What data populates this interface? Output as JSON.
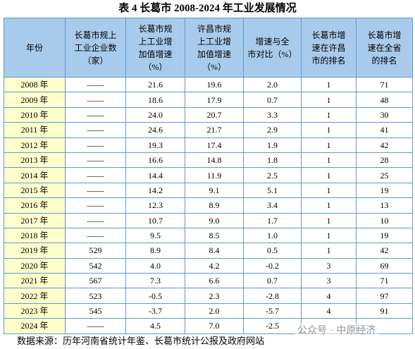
{
  "title": "表 4 长葛市 2008-2024 年工业发展情况",
  "table": {
    "header": [
      [
        "年份"
      ],
      [
        "长葛市规上",
        "工业企业数",
        "（家）"
      ],
      [
        "长葛市规",
        "上工业增",
        "加值增速",
        "（%）"
      ],
      [
        "许昌市规",
        "上工业增",
        "加值增速",
        "（%）"
      ],
      [
        "增速与全",
        "市对比（%）"
      ],
      [
        "长葛市增",
        "速在许昌",
        "市的排名"
      ],
      [
        "长葛市增",
        "速在全省",
        "的排名"
      ]
    ],
    "rows": [
      [
        "2008 年",
        "——",
        "21.6",
        "19.6",
        "2.0",
        "1",
        "71"
      ],
      [
        "2009 年",
        "——",
        "18.6",
        "17.9",
        "0.7",
        "1",
        "48"
      ],
      [
        "2010 年",
        "——",
        "24.0",
        "20.7",
        "3.3",
        "1",
        "30"
      ],
      [
        "2011 年",
        "——",
        "24.6",
        "21.7",
        "2.9",
        "1",
        "41"
      ],
      [
        "2012 年",
        "——",
        "19.3",
        "17.4",
        "1.9",
        "1",
        "42"
      ],
      [
        "2013 年",
        "——",
        "16.6",
        "14.8",
        "1.8",
        "1",
        "28"
      ],
      [
        "2014 年",
        "——",
        "14.4",
        "11.9",
        "2.5",
        "1",
        "25"
      ],
      [
        "2015 年",
        "——",
        "14.2",
        "9.1",
        "5.1",
        "1",
        "19"
      ],
      [
        "2016 年",
        "——",
        "12.3",
        "8.9",
        "3.4",
        "1",
        "13"
      ],
      [
        "2017 年",
        "——",
        "10.7",
        "9.0",
        "1.7",
        "1",
        "10"
      ],
      [
        "2018 年",
        "——",
        "9.5",
        "8.5",
        "1.0",
        "1",
        "19"
      ],
      [
        "2019 年",
        "529",
        "8.9",
        "8.4",
        "0.5",
        "1",
        "42"
      ],
      [
        "2020 年",
        "542",
        "4.0",
        "4.2",
        "-0.2",
        "3",
        "69"
      ],
      [
        "2021 年",
        "567",
        "7.3",
        "6.6",
        "0.7",
        "3",
        "71"
      ],
      [
        "2022 年",
        "523",
        "-0.5",
        "2.3",
        "-2.8",
        "4",
        "97"
      ],
      [
        "2023 年",
        "545",
        "-3.7",
        "2.0",
        "-5.7",
        "4",
        "91"
      ],
      [
        "2024 年",
        "——",
        "4.5",
        "7.0",
        "-2.5",
        null,
        null
      ]
    ]
  },
  "source": "数据来源：历年河南省统计年鉴、长葛市统计公报及政府网站",
  "watermark": "公众号 · 中原经济"
}
